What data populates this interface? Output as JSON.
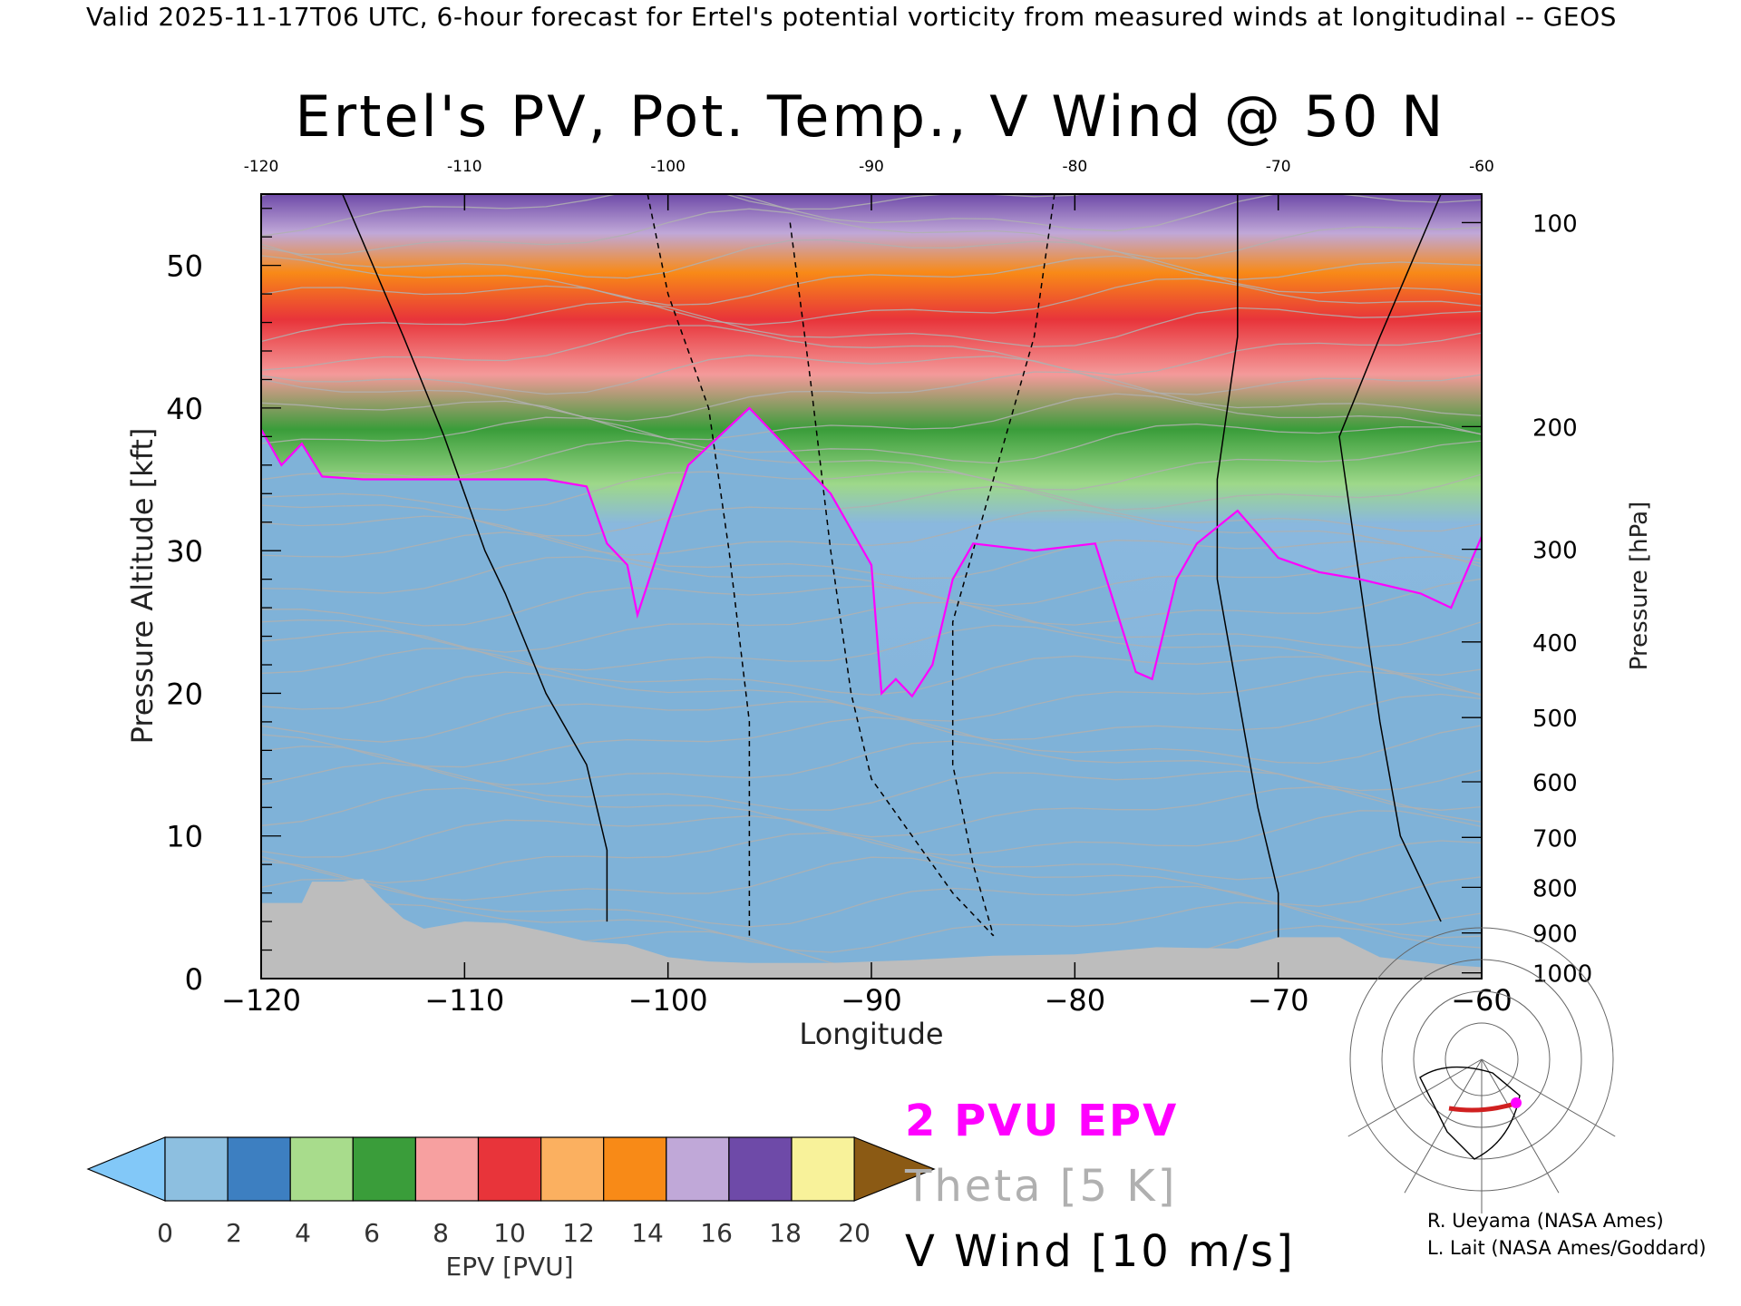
{
  "header": {
    "valid_line": "Valid 2025-11-17T06 UTC, 6-hour forecast for Ertel's potential vorticity from measured winds at longitudinal -- GEOS"
  },
  "chart_data": {
    "type": "heatmap",
    "title": "Ertel's PV, Pot. Temp., V Wind @ 50 N",
    "xlabel": "Longitude",
    "ylabel_left": "Pressure Altitude [kft]",
    "ylabel_right": "Pressure [hPa]",
    "xlim": [
      -120,
      -60
    ],
    "ylim": [
      0,
      55
    ],
    "x_ticks": [
      -120,
      -110,
      -100,
      -90,
      -80,
      -70,
      -60
    ],
    "x_tick_labels": [
      "−120",
      "−110",
      "−100",
      "−90",
      "−80",
      "−70",
      "−60"
    ],
    "top_tick_labels": [
      "-120",
      "-110",
      "-100",
      "-90",
      "-80",
      "-70",
      "-60"
    ],
    "y_ticks_left": [
      0,
      10,
      20,
      30,
      40,
      50
    ],
    "y_ticks_right": [
      {
        "hPa": 100,
        "kft": 53.0
      },
      {
        "hPa": 200,
        "kft": 38.7
      },
      {
        "hPa": 300,
        "kft": 30.1
      },
      {
        "hPa": 400,
        "kft": 23.6
      },
      {
        "hPa": 500,
        "kft": 18.3
      },
      {
        "hPa": 600,
        "kft": 13.8
      },
      {
        "hPa": 700,
        "kft": 9.9
      },
      {
        "hPa": 800,
        "kft": 6.4
      },
      {
        "hPa": 900,
        "kft": 3.2
      },
      {
        "hPa": 1000,
        "kft": 0.4
      }
    ],
    "tropopause_2pvu_kft": [
      [
        -120,
        38.5
      ],
      [
        -119,
        36
      ],
      [
        -118,
        37.5
      ],
      [
        -117,
        35.2
      ],
      [
        -115,
        35
      ],
      [
        -110,
        35
      ],
      [
        -106,
        35
      ],
      [
        -104,
        34.5
      ],
      [
        -103,
        30.5
      ],
      [
        -102,
        29
      ],
      [
        -101.5,
        25.5
      ],
      [
        -100,
        32
      ],
      [
        -99,
        36
      ],
      [
        -96,
        40
      ],
      [
        -94,
        37
      ],
      [
        -92,
        34
      ],
      [
        -90,
        29
      ],
      [
        -89.5,
        20
      ],
      [
        -88.8,
        21
      ],
      [
        -88,
        19.8
      ],
      [
        -87,
        22
      ],
      [
        -86,
        28
      ],
      [
        -85,
        30.5
      ],
      [
        -82,
        30
      ],
      [
        -79,
        30.5
      ],
      [
        -78,
        26
      ],
      [
        -77,
        21.5
      ],
      [
        -76.2,
        21
      ],
      [
        -75,
        28
      ],
      [
        -74,
        30.5
      ],
      [
        -72,
        32.8
      ],
      [
        -70,
        29.5
      ],
      [
        -68,
        28.5
      ],
      [
        -66,
        28
      ],
      [
        -63,
        27
      ],
      [
        -61.5,
        26
      ],
      [
        -60,
        31
      ]
    ],
    "terrain_kft": [
      [
        -120,
        5.3
      ],
      [
        -118,
        5.3
      ],
      [
        -117.5,
        6.8
      ],
      [
        -116,
        6.8
      ],
      [
        -115,
        7
      ],
      [
        -114,
        5.5
      ],
      [
        -113,
        4.2
      ],
      [
        -112,
        3.5
      ],
      [
        -110,
        4
      ],
      [
        -108,
        3.9
      ],
      [
        -106,
        3.3
      ],
      [
        -104,
        2.6
      ],
      [
        -102,
        2.4
      ],
      [
        -100,
        1.5
      ],
      [
        -98,
        1.2
      ],
      [
        -96,
        1.1
      ],
      [
        -92,
        1.1
      ],
      [
        -88,
        1.3
      ],
      [
        -84,
        1.6
      ],
      [
        -80,
        1.7
      ],
      [
        -76,
        2.2
      ],
      [
        -72,
        2.1
      ],
      [
        -70,
        2.9
      ],
      [
        -67,
        2.9
      ],
      [
        -65,
        1.5
      ],
      [
        -62,
        1.0
      ],
      [
        -60,
        0.8
      ]
    ],
    "colorbar": {
      "label": "EPV [PVU]",
      "ticks": [
        "0",
        "2",
        "4",
        "6",
        "8",
        "10",
        "12",
        "14",
        "16",
        "18",
        "20"
      ],
      "colors": [
        "#8dbfe0",
        "#3d7fc1",
        "#a8dc8c",
        "#3a9d3a",
        "#f7a0a0",
        "#e8343a",
        "#fbb060",
        "#f88a17",
        "#c0a8d8",
        "#6e4aa8",
        "#f8f29a"
      ],
      "under_color": "#82c8f8",
      "over_color": "#8b5a14"
    },
    "legend": {
      "epv_contour": "2 PVU EPV",
      "theta": "Theta [5 K]",
      "vwind": "V Wind [10 m/s]"
    }
  },
  "credits": {
    "line1": "R. Ueyama (NASA Ames)",
    "line2": "L. Lait (NASA Ames/Goddard)"
  },
  "colors": {
    "pv_contour": "#ff00ff",
    "theta": "#b0b0b0",
    "terrain": "#bdbdbd",
    "track": "#d02020"
  }
}
